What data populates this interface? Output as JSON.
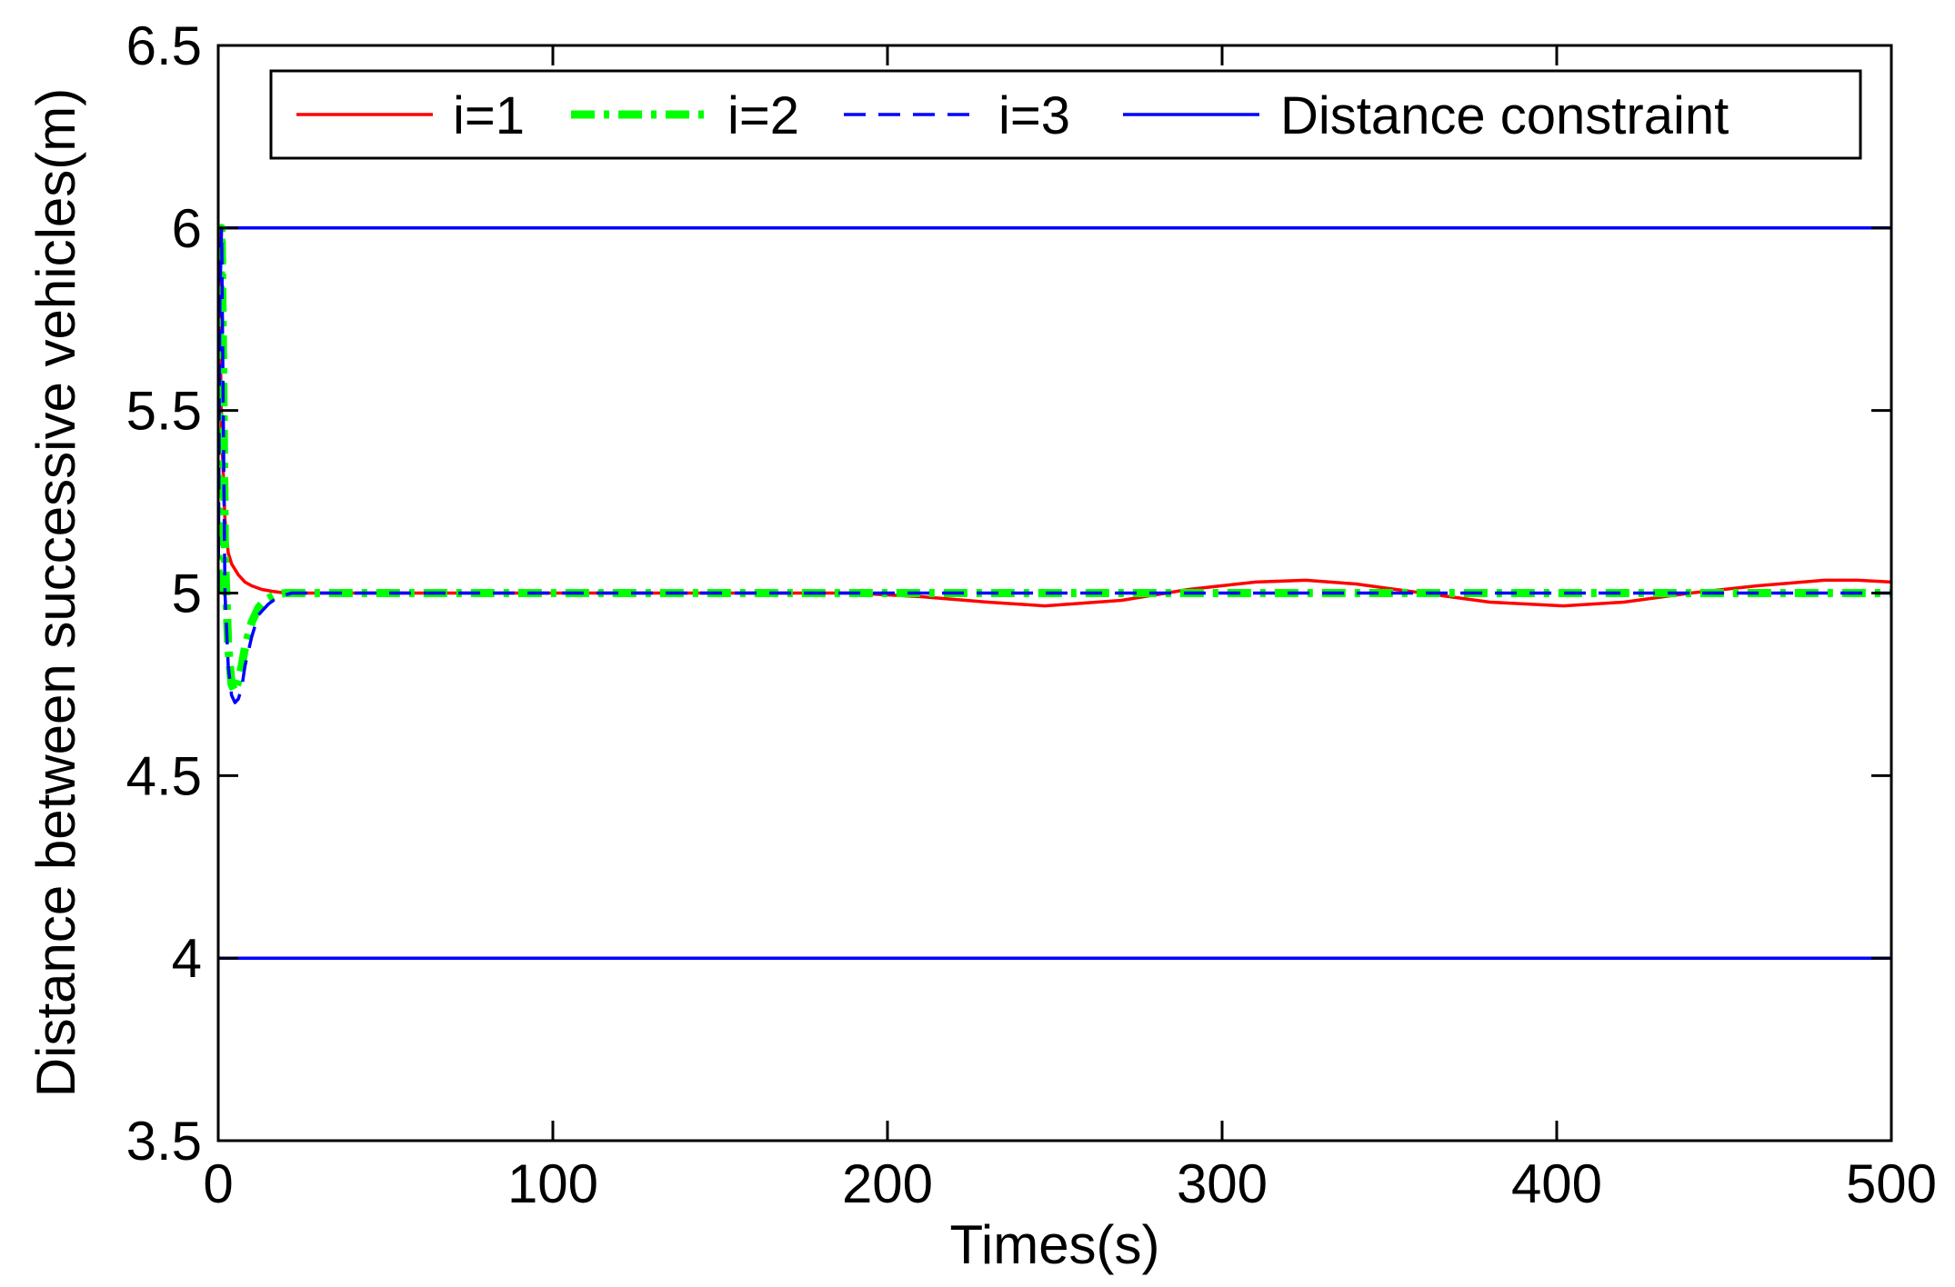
{
  "chart_data": {
    "type": "line",
    "title": "",
    "xlabel": "Times(s)",
    "ylabel": "Distance between successive vehicles(m)",
    "xlim": [
      0,
      500
    ],
    "ylim": [
      3.5,
      6.5
    ],
    "xticks": [
      0,
      100,
      200,
      300,
      400,
      500
    ],
    "yticks": [
      3.5,
      4,
      4.5,
      5,
      5.5,
      6,
      6.5
    ],
    "xtick_labels": [
      "0",
      "100",
      "200",
      "300",
      "400",
      "500"
    ],
    "ytick_labels": [
      "3.5",
      "4",
      "4.5",
      "5",
      "5.5",
      "6",
      "6.5"
    ],
    "grid": false,
    "legend_position": "top",
    "series": [
      {
        "name": "i=1",
        "color": "#ff0000",
        "style": "solid",
        "x": [
          0,
          0.5,
          1,
          2,
          3,
          4,
          6,
          8,
          10,
          13,
          16,
          20,
          30,
          50,
          100,
          150,
          190,
          210,
          230,
          247,
          270,
          290,
          310,
          325,
          340,
          360,
          380,
          402,
          420,
          440,
          460,
          480,
          490,
          500
        ],
        "y": [
          6.0,
          5.75,
          5.45,
          5.2,
          5.11,
          5.08,
          5.05,
          5.03,
          5.02,
          5.01,
          5.005,
          5.0,
          5.0,
          5.0,
          5.0,
          5.0,
          5.0,
          4.99,
          4.975,
          4.965,
          4.98,
          5.01,
          5.03,
          5.035,
          5.025,
          5.0,
          4.975,
          4.965,
          4.975,
          5.0,
          5.02,
          5.035,
          5.035,
          5.03
        ]
      },
      {
        "name": "i=2",
        "color": "#00ff00",
        "style": "dashdot",
        "x": [
          0,
          0.5,
          1,
          1.5,
          2,
          3,
          4,
          5,
          6,
          7,
          8,
          10,
          12,
          14,
          17,
          20,
          30,
          100,
          200,
          300,
          400,
          500
        ],
        "y": [
          5.0,
          5.7,
          6.0,
          5.6,
          5.1,
          4.85,
          4.75,
          4.73,
          4.76,
          4.8,
          4.85,
          4.92,
          4.96,
          4.98,
          4.995,
          5.0,
          5.0,
          5.0,
          5.0,
          5.0,
          5.0,
          5.0
        ]
      },
      {
        "name": "i=3",
        "color": "#0000ff",
        "style": "dashed",
        "x": [
          0,
          0.5,
          1,
          1.5,
          2,
          3,
          4,
          5,
          6,
          7,
          8,
          10,
          12,
          15,
          18,
          22,
          30,
          100,
          200,
          300,
          400,
          500
        ],
        "y": [
          5.0,
          5.8,
          6.0,
          5.5,
          5.0,
          4.8,
          4.72,
          4.7,
          4.71,
          4.74,
          4.8,
          4.88,
          4.94,
          4.97,
          4.99,
          5.0,
          5.0,
          5.0,
          5.0,
          5.0,
          5.0,
          5.0
        ]
      },
      {
        "name": "Distance constraint",
        "color": "#0000ff",
        "style": "solid",
        "x": [
          0,
          500
        ],
        "y": [
          6,
          6
        ]
      },
      {
        "name": "",
        "color": "#0000ff",
        "style": "solid",
        "x": [
          0,
          500
        ],
        "y": [
          4,
          4
        ]
      }
    ]
  }
}
